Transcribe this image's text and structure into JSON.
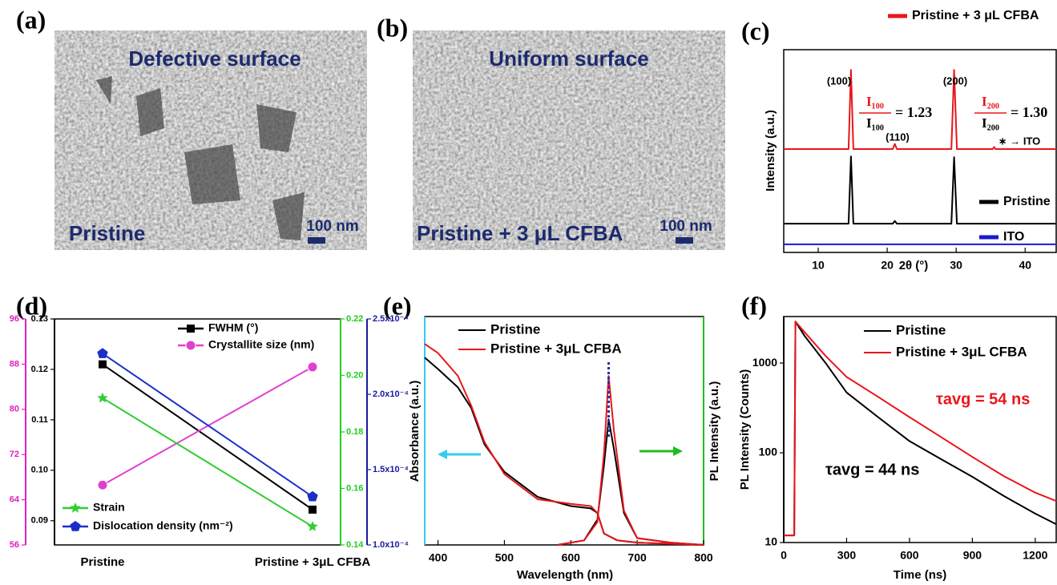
{
  "panel_labels": [
    "(a)",
    "(b)",
    "(c)",
    "(d)",
    "(e)",
    "(f)"
  ],
  "images": [
    {
      "heading": "Defective surface",
      "caption": "Pristine",
      "scale_bar": "100 nm"
    },
    {
      "heading": "Uniform surface",
      "caption": "Pristine + 3 μL CFBA",
      "scale_bar": "100 nm"
    }
  ],
  "chart_data": [
    {
      "type": "line",
      "xlabel": "2θ (°)",
      "ylabel": "Intensity (a.u.)",
      "xlim": [
        5,
        44.5
      ],
      "xticks": [
        10,
        20,
        30,
        40
      ],
      "ylim": [
        0,
        10
      ],
      "legend": "upper right",
      "series": [
        {
          "name": "Pristine + 3 μL CFBA",
          "color": "#e8161b",
          "x": [
            5,
            14.4,
            14.75,
            15.1,
            20.8,
            21.1,
            21.4,
            29.3,
            29.7,
            30.1,
            35.3,
            35.5,
            35.7,
            44.5
          ],
          "values": [
            5.1,
            5.1,
            9.0,
            5.1,
            5.1,
            5.35,
            5.1,
            5.1,
            9.0,
            5.1,
            5.1,
            5.2,
            5.1,
            5.1
          ]
        },
        {
          "name": "Pristine",
          "color": "#000000",
          "x": [
            5,
            14.4,
            14.75,
            15.1,
            20.8,
            21.1,
            21.4,
            29.3,
            29.7,
            30.1,
            44.5
          ],
          "values": [
            1.42,
            1.42,
            4.74,
            1.42,
            1.42,
            1.55,
            1.42,
            1.42,
            4.7,
            1.42,
            1.42
          ]
        },
        {
          "name": "ITO",
          "color": "#1a1ad0",
          "x": [
            5,
            44.5
          ],
          "values": [
            0.4,
            0.4
          ]
        }
      ],
      "annotations": [
        {
          "text": "(100)",
          "color": "#000000"
        },
        {
          "text": "(110)",
          "color": "#000000"
        },
        {
          "text": "(200)",
          "color": "#000000"
        },
        {
          "text": "∗ → ITO",
          "color": "#000000"
        }
      ],
      "ratios": [
        {
          "numerator": "I₁₀₀",
          "denominator": "I₁₀₀",
          "equals": "= 1.23",
          "color": "#e8161b"
        },
        {
          "numerator": "I₂₀₀",
          "denominator": "I₂₀₀",
          "equals": "= 1.30",
          "color": "#e8161b"
        }
      ]
    },
    {
      "type": "line",
      "categories": [
        "Pristine",
        "Pristine + 3μL CFBA"
      ],
      "legend": "upper center",
      "ylim": [
        0.0852,
        0.13
      ],
      "yticks": [
        0.09,
        {
          "value": 0.1,
          "label": "0.10"
        },
        0.11,
        0.12,
        0.13
      ],
      "y_color": "#000000",
      "y2lim": [
        56,
        96
      ],
      "y2ticks": [
        56,
        64,
        72,
        80,
        88,
        96
      ],
      "y2_color": "#e020c0",
      "y3lim": [
        0.14,
        0.22
      ],
      "y3ticks": [
        0.14,
        0.16,
        0.18,
        {
          "value": 0.2,
          "label": "0.20"
        },
        0.22
      ],
      "y3_color": "#22cc22",
      "y4lim": [
        0.0001,
        0.00025
      ],
      "y4ticks": [
        {
          "value": 0.0001,
          "label": "1.0x10⁻⁴"
        },
        {
          "value": 0.00015,
          "label": "1.5x10⁻⁴"
        },
        {
          "value": 0.0002,
          "label": "2.0x10⁻⁴"
        },
        {
          "value": 0.00025,
          "label": "2.5x10⁻⁴"
        }
      ],
      "y4_color": "#1a1aa0",
      "series": [
        {
          "name": "FWHM (°)",
          "color": "#000000",
          "marker": "square",
          "values": [
            0.121,
            0.0922
          ]
        },
        {
          "name": "Crystallite size (nm)",
          "color": "#e040d0",
          "marker": "circle",
          "axis": "y2",
          "values": [
            66.6,
            87.5
          ]
        },
        {
          "name": "Strain",
          "color": "#33cc33",
          "marker": "star",
          "axis": "y3",
          "values": [
            0.192,
            0.1465
          ]
        },
        {
          "name": "Dislocation density (nm⁻²)",
          "color": "#1a2fc8",
          "marker": "pentagon",
          "axis": "y4",
          "values": [
            0.000227,
            0.000132
          ]
        }
      ]
    },
    {
      "type": "line",
      "xlabel": "Wavelength (nm)",
      "ylabel": "Absorbance (a.u.)",
      "y2label": "PL Intensity (a.u.)",
      "xlim": [
        380,
        800
      ],
      "xticks": [
        400,
        500,
        600,
        700,
        800
      ],
      "ylim": [
        0,
        1
      ],
      "y2lim": [
        0,
        1
      ],
      "y_color": "#33ccee",
      "y2_color": "#22bb22",
      "legend": "upper left",
      "series": [
        {
          "name": "Pristine",
          "color": "#000000",
          "x": [
            380,
            400,
            430,
            450,
            470,
            500,
            550,
            600,
            630,
            640,
            650,
            670,
            700,
            800
          ],
          "values": [
            0.82,
            0.77,
            0.69,
            0.6,
            0.44,
            0.32,
            0.21,
            0.17,
            0.16,
            0.14,
            0.05,
            0.02,
            0.01,
            0.0
          ]
        },
        {
          "name": "Pristine + 3μL CFBA",
          "color": "#e8161b",
          "x": [
            380,
            400,
            430,
            450,
            470,
            500,
            550,
            600,
            630,
            640,
            650,
            670,
            700,
            800
          ],
          "values": [
            0.88,
            0.84,
            0.74,
            0.61,
            0.45,
            0.31,
            0.2,
            0.18,
            0.17,
            0.14,
            0.05,
            0.02,
            0.01,
            0.0
          ]
        },
        {
          "color": "#000000",
          "axis": "y2",
          "x": [
            580,
            620,
            640,
            650,
            657,
            665,
            680,
            700,
            750,
            800
          ],
          "values": [
            0.0,
            0.02,
            0.11,
            0.35,
            0.55,
            0.42,
            0.14,
            0.03,
            0.01,
            0.0
          ]
        },
        {
          "color": "#e8161b",
          "axis": "y2",
          "x": [
            580,
            620,
            640,
            650,
            657,
            665,
            680,
            700,
            750,
            800
          ],
          "values": [
            0.0,
            0.02,
            0.1,
            0.4,
            0.74,
            0.5,
            0.15,
            0.03,
            0.01,
            0.0
          ]
        }
      ]
    },
    {
      "type": "line",
      "xlabel": "Time (ns)",
      "ylabel": "PL Intensity (Counts)",
      "yscale": "log",
      "xlim": [
        0,
        1300
      ],
      "xticks": [
        0,
        300,
        600,
        900,
        1200
      ],
      "ylim": [
        10,
        3300
      ],
      "yticks": [
        10,
        100,
        1000
      ],
      "legend": "upper right",
      "series": [
        {
          "name": "Pristine",
          "color": "#000000",
          "x": [
            0,
            50,
            56,
            100,
            200,
            300,
            450,
            600,
            750,
            900,
            1050,
            1200,
            1300
          ],
          "values": [
            12,
            12,
            2900,
            2000,
            1000,
            470,
            250,
            135,
            85,
            54,
            33,
            21,
            16
          ]
        },
        {
          "name": "Pristine + 3μL CFBA",
          "color": "#e8161b",
          "x": [
            0,
            50,
            56,
            100,
            200,
            300,
            450,
            600,
            750,
            900,
            1050,
            1200,
            1300
          ],
          "values": [
            12,
            12,
            2900,
            2200,
            1200,
            700,
            420,
            250,
            150,
            90,
            55,
            36,
            29
          ]
        }
      ],
      "annotations": [
        {
          "text": "τavg = 54 ns",
          "color": "#e8161b"
        },
        {
          "text": "τavg = 44 ns",
          "color": "#000000"
        }
      ]
    }
  ]
}
